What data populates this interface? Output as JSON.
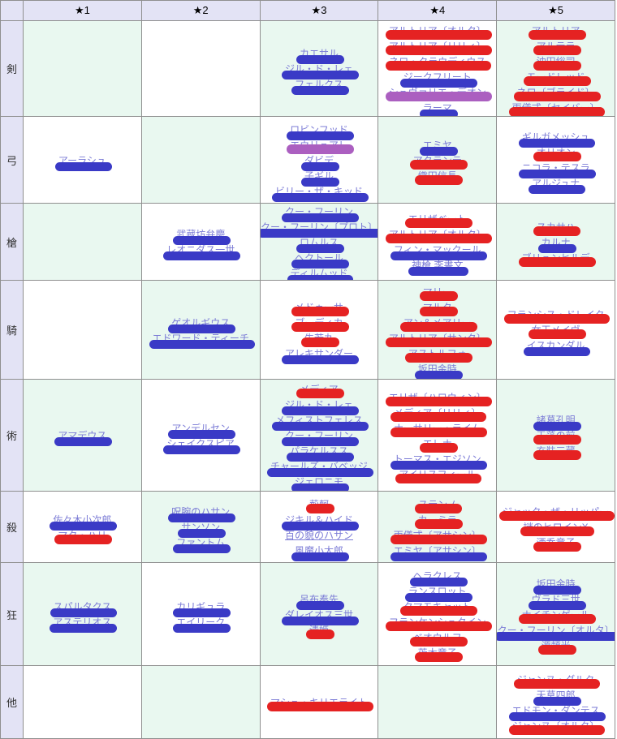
{
  "table": {
    "corner_label": "",
    "columns": [
      "★1",
      "★2",
      "★3",
      "★4",
      "★5"
    ],
    "rows": [
      {
        "label": "剣",
        "cells": [
          [],
          [],
          [
            {
              "name": "カエサル",
              "marker": "blue"
            },
            {
              "name": "ジル・ド・レェ",
              "marker": "blue"
            },
            {
              "name": "フェルクス",
              "marker": "blue"
            }
          ],
          [
            {
              "name": "アルトリア〔オルタ〕",
              "marker": "red"
            },
            {
              "name": "アルトリア〔リリィ〕",
              "marker": "red"
            },
            {
              "name": "ネロ・クラウディウス",
              "marker": "red"
            },
            {
              "name": "ジークフリート",
              "marker": "blue"
            },
            {
              "name": "シュヴァリエ・デオン",
              "marker": "purple"
            },
            {
              "name": "ラーマ",
              "marker": "blue"
            }
          ],
          [
            {
              "name": "アルトリア",
              "marker": "red"
            },
            {
              "name": "アルテラ",
              "marker": "red"
            },
            {
              "name": "沖田総司",
              "marker": "red"
            },
            {
              "name": "モードレッド",
              "marker": "red"
            },
            {
              "name": "ネロ〔ブライド〕",
              "marker": "red"
            },
            {
              "name": "両儀式〔セイバー〕",
              "marker": "red"
            }
          ]
        ]
      },
      {
        "label": "弓",
        "cells": [
          [
            {
              "name": "アーラシュ",
              "marker": "blue"
            }
          ],
          [],
          [
            {
              "name": "ロビンフッド",
              "marker": "blue"
            },
            {
              "name": "エウリュアレ",
              "marker": "purple"
            },
            {
              "name": "ダビデ",
              "marker": "blue"
            },
            {
              "name": "子ギル",
              "marker": "blue"
            },
            {
              "name": "ビリー・ザ・キッド",
              "marker": "blue"
            }
          ],
          [
            {
              "name": "エミヤ",
              "marker": "blue"
            },
            {
              "name": "アタランテ",
              "marker": "red"
            },
            {
              "name": "織田信長",
              "marker": "red"
            }
          ],
          [
            {
              "name": "ギルガメッシュ",
              "marker": "blue"
            },
            {
              "name": "オリオン",
              "marker": "red"
            },
            {
              "name": "ニコラ・テスラ",
              "marker": "blue"
            },
            {
              "name": "アルジュナ",
              "marker": "blue"
            }
          ]
        ]
      },
      {
        "label": "槍",
        "cells": [
          [],
          [
            {
              "name": "武蔵坊弁慶",
              "marker": "blue"
            },
            {
              "name": "レオニダス一世",
              "marker": "blue"
            }
          ],
          [
            {
              "name": "クー・フーリン",
              "marker": "blue"
            },
            {
              "name": "クー・フーリン〔プロト〕",
              "marker": "blue"
            },
            {
              "name": "ロムルス",
              "marker": "blue"
            },
            {
              "name": "ヘクトール",
              "marker": "blue"
            },
            {
              "name": "ディルムッド",
              "marker": "blue"
            }
          ],
          [
            {
              "name": "エリザベート",
              "marker": "red"
            },
            {
              "name": "アルトリア〔オルタ〕",
              "marker": "red"
            },
            {
              "name": "フィン・マックール",
              "marker": "blue"
            },
            {
              "name": "神槍 李書文",
              "marker": "blue"
            }
          ],
          [
            {
              "name": "スカサハ",
              "marker": "red"
            },
            {
              "name": "カルナ",
              "marker": "blue"
            },
            {
              "name": "ブリュンヒルデ",
              "marker": "red"
            }
          ]
        ]
      },
      {
        "label": "騎",
        "cells": [
          [],
          [
            {
              "name": "ゲオルギウス",
              "marker": "blue"
            },
            {
              "name": "エドワード・ティーチ",
              "marker": "blue"
            }
          ],
          [
            {
              "name": "メドゥーサ",
              "marker": "red"
            },
            {
              "name": "ブーディカ",
              "marker": "red"
            },
            {
              "name": "牛若丸",
              "marker": "red"
            },
            {
              "name": "アレキサンダー",
              "marker": "blue"
            }
          ],
          [
            {
              "name": "マリー",
              "marker": "red"
            },
            {
              "name": "マルタ",
              "marker": "red"
            },
            {
              "name": "アン＆メアリー",
              "marker": "red"
            },
            {
              "name": "アルトリア〔サンタ〕",
              "marker": "red"
            },
            {
              "name": "アストルフォ",
              "marker": "red"
            },
            {
              "name": "坂田金時",
              "marker": "blue"
            }
          ],
          [
            {
              "name": "フランシス・ドレイク",
              "marker": "red"
            },
            {
              "name": "女王メイヴ",
              "marker": "red"
            },
            {
              "name": "イスカンダル",
              "marker": "blue"
            }
          ]
        ]
      },
      {
        "label": "術",
        "cells": [
          [
            {
              "name": "アマデウス",
              "marker": "blue"
            }
          ],
          [
            {
              "name": "アンデルセン",
              "marker": "blue"
            },
            {
              "name": "シェイクスピア",
              "marker": "blue"
            }
          ],
          [
            {
              "name": "メディア",
              "marker": "red"
            },
            {
              "name": "ジル・ド・レェ",
              "marker": "blue"
            },
            {
              "name": "メフィストフェレス",
              "marker": "blue"
            },
            {
              "name": "クー・フーリン",
              "marker": "blue"
            },
            {
              "name": "パラケルスス",
              "marker": "blue"
            },
            {
              "name": "チャールズ・バベッジ",
              "marker": "blue"
            },
            {
              "name": "ジェロニモ",
              "marker": "blue"
            }
          ],
          [
            {
              "name": "エリザ〔ハロウィン〕",
              "marker": "red"
            },
            {
              "name": "メディア〔リリィ〕",
              "marker": "red"
            },
            {
              "name": "ナーサリー・ライム",
              "marker": "red"
            },
            {
              "name": "エレナ",
              "marker": "red"
            },
            {
              "name": "トーマス・エジソン",
              "marker": "blue"
            },
            {
              "name": "アイリスフィール",
              "marker": "red"
            }
          ],
          [
            {
              "name": "諸葛孔明",
              "marker": "blue"
            },
            {
              "name": "玉藻の前",
              "marker": "red"
            },
            {
              "name": "玄奘三蔵",
              "marker": "red"
            }
          ]
        ]
      },
      {
        "label": "殺",
        "cells": [
          [
            {
              "name": "佐々木小次郎",
              "marker": "blue"
            },
            {
              "name": "マタ・ハリ",
              "marker": "red"
            }
          ],
          [
            {
              "name": "呪腕のハサン",
              "marker": "blue"
            },
            {
              "name": "サンソン",
              "marker": "blue"
            },
            {
              "name": "ファントム",
              "marker": "blue"
            }
          ],
          [
            {
              "name": "荊軻",
              "marker": "red"
            },
            {
              "name": "ジキル＆ハイド",
              "marker": "blue"
            },
            {
              "name": "百の貌のハサン",
              "marker": "none"
            },
            {
              "name": "風魔小太郎",
              "marker": "blue"
            }
          ],
          [
            {
              "name": "ステンノ",
              "marker": "red"
            },
            {
              "name": "カーミラ",
              "marker": "red"
            },
            {
              "name": "両儀式〔アサシン〕",
              "marker": "red"
            },
            {
              "name": "エミヤ〔アサシン〕",
              "marker": "blue"
            }
          ],
          [
            {
              "name": "ジャック・ザ・リッパー",
              "marker": "red"
            },
            {
              "name": "謎のヒロインX",
              "marker": "red"
            },
            {
              "name": "酒呑童子",
              "marker": "red"
            }
          ]
        ]
      },
      {
        "label": "狂",
        "cells": [
          [
            {
              "name": "スパルタクス",
              "marker": "blue"
            },
            {
              "name": "アステリオス",
              "marker": "blue"
            }
          ],
          [
            {
              "name": "カリギュラ",
              "marker": "blue"
            },
            {
              "name": "エイリーク",
              "marker": "blue"
            }
          ],
          [
            {
              "name": "呂布奉先",
              "marker": "blue"
            },
            {
              "name": "ダレイオス三世",
              "marker": "blue"
            },
            {
              "name": "清姫",
              "marker": "red"
            }
          ],
          [
            {
              "name": "ヘラクレス",
              "marker": "blue"
            },
            {
              "name": "ランスロット",
              "marker": "blue"
            },
            {
              "name": "タマモキャット",
              "marker": "red"
            },
            {
              "name": "フランケンシュタイン",
              "marker": "red"
            },
            {
              "name": "ベオウルフ",
              "marker": "red"
            },
            {
              "name": "茨木童子",
              "marker": "red"
            }
          ],
          [
            {
              "name": "坂田金時",
              "marker": "blue"
            },
            {
              "name": "ヴラド三世",
              "marker": "blue"
            },
            {
              "name": "ナイチンゲール",
              "marker": "red"
            },
            {
              "name": "クー・フーリン〔オルタ〕",
              "marker": "blue"
            },
            {
              "name": "源頼光",
              "marker": "red"
            }
          ]
        ]
      },
      {
        "label": "他",
        "cells": [
          [],
          [],
          [
            {
              "name": "マシュ・キリエライト",
              "marker": "red"
            }
          ],
          [],
          [
            {
              "name": "ジャンヌ・ダルク",
              "marker": "red"
            },
            {
              "name": "天草四郎",
              "marker": "blue"
            },
            {
              "name": "エドモン・ダンテス",
              "marker": "blue"
            },
            {
              "name": "ジャンヌ〔オルタ〕",
              "marker": "red"
            }
          ]
        ]
      }
    ]
  },
  "colors": {
    "header_bg": "#e3e3f5",
    "cell_mint": "#e9f8f0",
    "cell_white": "#ffffff",
    "border": "#8f8f8f",
    "link_color": "#7b7bd6",
    "marker_blue": "#3a3ac6",
    "marker_red": "#e52222",
    "marker_purple": "#ab5fc0"
  }
}
